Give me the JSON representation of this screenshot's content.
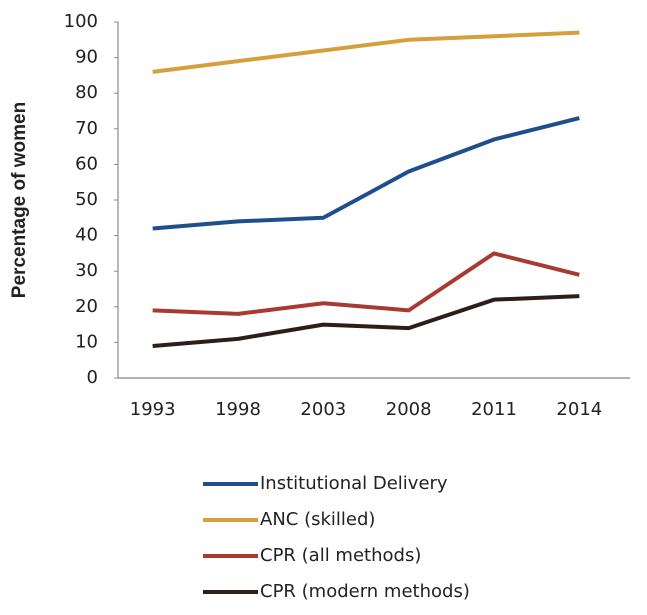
{
  "chart_data": {
    "type": "line",
    "y_label": "Percentage of women",
    "categories": [
      "1993",
      "1998",
      "2003",
      "2008",
      "2011",
      "2014"
    ],
    "series": [
      {
        "name": "Institutional Delivery",
        "color": "#1f4e8c",
        "values": [
          42,
          44,
          45,
          58,
          67,
          73
        ]
      },
      {
        "name": "ANC (skilled)",
        "color": "#d4a03a",
        "values": [
          86,
          89,
          92,
          95,
          96,
          97
        ]
      },
      {
        "name": "CPR (all methods)",
        "color": "#a83a32",
        "values": [
          19,
          18,
          21,
          19,
          35,
          29
        ]
      },
      {
        "name": "CPR (modern methods)",
        "color": "#2d1e18",
        "values": [
          9,
          11,
          15,
          14,
          22,
          23
        ]
      }
    ],
    "ylim": [
      0,
      100
    ],
    "yticks": [
      0,
      10,
      20,
      30,
      40,
      50,
      60,
      70,
      80,
      90,
      100
    ],
    "grid": false,
    "legend": "bottom"
  }
}
